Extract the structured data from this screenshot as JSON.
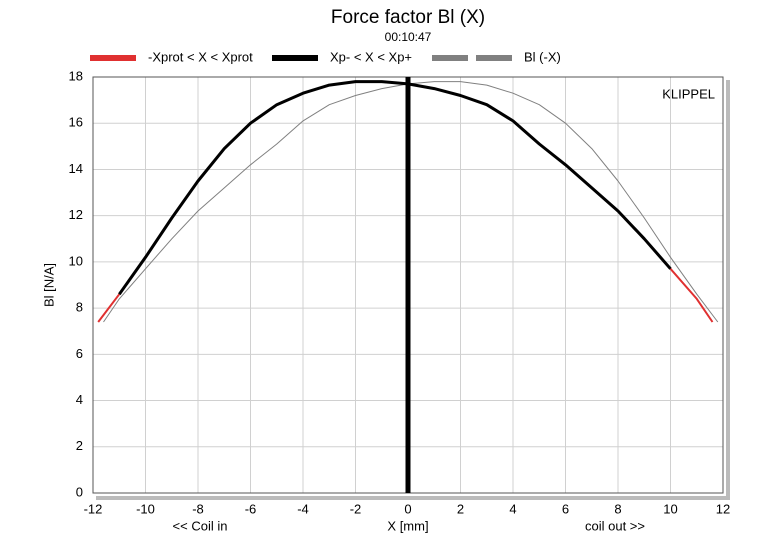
{
  "chart_data": {
    "type": "line",
    "title": "Force factor Bl (X)",
    "subtitle": "00:10:47",
    "x_label": "X [mm]",
    "y_label": "Bl [N/A]",
    "x_left_note": "<< Coil in",
    "x_right_note": "coil out >>",
    "annotation": "KLIPPEL",
    "xlim": [
      -12,
      12
    ],
    "ylim": [
      0,
      18
    ],
    "xticks": [
      -12,
      -10,
      -8,
      -6,
      -4,
      -2,
      0,
      2,
      4,
      6,
      8,
      10,
      12
    ],
    "yticks": [
      0,
      2,
      4,
      6,
      8,
      10,
      12,
      14,
      16,
      18
    ],
    "grid": true,
    "series": [
      {
        "name": "-Xprot < X < Xprot",
        "color": "#e03030",
        "width": 2,
        "dash": false,
        "x": [
          -11.8,
          -11,
          -10,
          -9,
          -8,
          -7,
          -6,
          -5,
          -4,
          -3,
          -2,
          -1,
          0,
          1,
          2,
          3,
          4,
          5,
          6,
          7,
          8,
          9,
          10,
          11,
          11.6
        ],
        "values": [
          7.4,
          8.6,
          10.2,
          11.9,
          13.5,
          14.9,
          16.0,
          16.8,
          17.3,
          17.65,
          17.8,
          17.8,
          17.7,
          17.5,
          17.2,
          16.8,
          16.1,
          15.1,
          14.2,
          13.2,
          12.2,
          11.0,
          9.7,
          8.4,
          7.4
        ]
      },
      {
        "name": "Xp- < X < Xp+",
        "color": "#000000",
        "width": 3,
        "dash": false,
        "x": [
          -11,
          -10,
          -9,
          -8,
          -7,
          -6,
          -5,
          -4,
          -3,
          -2,
          -1,
          0,
          1,
          2,
          3,
          4,
          5,
          6,
          7,
          8,
          9,
          10
        ],
        "values": [
          8.6,
          10.2,
          11.9,
          13.5,
          14.9,
          16.0,
          16.8,
          17.3,
          17.65,
          17.8,
          17.8,
          17.7,
          17.5,
          17.2,
          16.8,
          16.1,
          15.1,
          14.2,
          13.2,
          12.2,
          11.0,
          9.7
        ]
      },
      {
        "name": "Bl (-X)",
        "color": "#808080",
        "width": 1,
        "dash": true,
        "x": [
          -11.6,
          -11,
          -10,
          -9,
          -8,
          -7,
          -6,
          -5,
          -4,
          -3,
          -2,
          -1,
          0,
          1,
          2,
          3,
          4,
          5,
          6,
          7,
          8,
          9,
          10,
          11,
          11.8
        ],
        "values": [
          7.4,
          8.4,
          9.7,
          11.0,
          12.2,
          13.2,
          14.2,
          15.1,
          16.1,
          16.8,
          17.2,
          17.5,
          17.7,
          17.8,
          17.8,
          17.65,
          17.3,
          16.8,
          16.0,
          14.9,
          13.5,
          11.9,
          10.2,
          8.6,
          7.4
        ]
      }
    ]
  }
}
